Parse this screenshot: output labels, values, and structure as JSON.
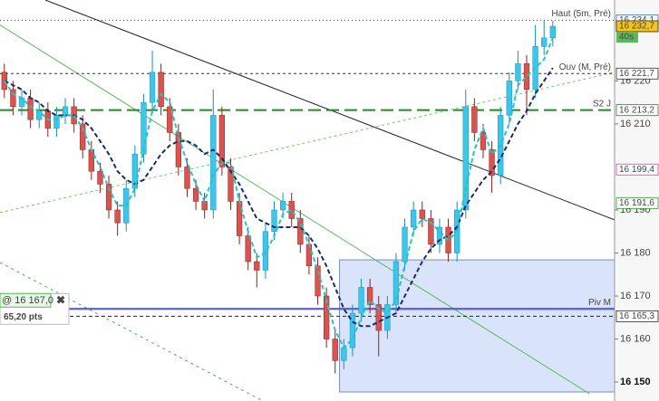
{
  "chart_data": {
    "type": "candlestick",
    "xlim": [
      -0.5,
      70.1
    ],
    "ylim": [
      16145.6,
      16238.8
    ],
    "grid": false,
    "yticks": [
      {
        "value": 16150,
        "label": "16 150"
      },
      {
        "value": 16160,
        "label": "16 160"
      },
      {
        "value": 16170,
        "label": "16 170"
      },
      {
        "value": 16180,
        "label": "16 180"
      },
      {
        "value": 16190,
        "label": "16 190"
      },
      {
        "value": 16210,
        "label": "16 210"
      },
      {
        "value": 16220,
        "label": "16 220"
      }
    ],
    "up_color": "#3cc6ec",
    "down_color": "#d9534f",
    "open": [
      16222,
      16218,
      16214,
      16216,
      16211,
      16213,
      16209,
      16212,
      16214,
      16210,
      16204,
      16199,
      16196,
      16190,
      16187,
      16195,
      16203,
      16215,
      16222,
      16214,
      16208,
      16200,
      16195,
      16192,
      16190,
      16212,
      16200,
      16192,
      16184,
      16178,
      16176,
      16185,
      16190,
      16192,
      16188,
      16182,
      16177,
      16170,
      16160,
      16155,
      16158,
      16166,
      16172,
      16168,
      16162,
      16168,
      16178,
      16186,
      16190,
      16188,
      16182,
      16186,
      16180,
      16190,
      16214,
      16208,
      16204,
      16198,
      16212,
      16220,
      16224,
      16218,
      16228,
      16230
    ],
    "high": [
      16224,
      16220,
      16218,
      16218,
      16215,
      16215,
      16214,
      16216,
      16216,
      16212,
      16206,
      16201,
      16198,
      16192,
      16197,
      16205,
      16217,
      16227,
      16224,
      16216,
      16210,
      16202,
      16197,
      16194,
      16218,
      16214,
      16202,
      16194,
      16186,
      16180,
      16187,
      16192,
      16194,
      16194,
      16190,
      16184,
      16179,
      16172,
      16162,
      16160,
      16168,
      16174,
      16174,
      16170,
      16170,
      16180,
      16188,
      16192,
      16192,
      16190,
      16188,
      16188,
      16192,
      16218,
      16216,
      16210,
      16206,
      16214,
      16222,
      16227,
      16226,
      16233,
      16234.1,
      16234
    ],
    "low": [
      16216,
      16212,
      16212,
      16209,
      16209,
      16207,
      16207,
      16210,
      16208,
      16202,
      16197,
      16194,
      16188,
      16184,
      16185,
      16193,
      16201,
      16213,
      16212,
      16206,
      16198,
      16193,
      16190,
      16188,
      16188,
      16198,
      16190,
      16182,
      16176,
      16172,
      16174,
      16183,
      16188,
      16186,
      16180,
      16175,
      16168,
      16158,
      16152,
      16153,
      16156,
      16164,
      16166,
      16156,
      16160,
      16166,
      16176,
      16184,
      16186,
      16180,
      16180,
      16178,
      16178,
      16188,
      16206,
      16202,
      16194,
      16196,
      16210,
      16218,
      16212,
      16216,
      16226,
      16228
    ],
    "close": [
      16218,
      16214,
      16216,
      16211,
      16213,
      16209,
      16212,
      16214,
      16210,
      16204,
      16199,
      16196,
      16190,
      16187,
      16195,
      16203,
      16215,
      16222,
      16214,
      16208,
      16200,
      16195,
      16192,
      16190,
      16212,
      16200,
      16192,
      16184,
      16178,
      16176,
      16185,
      16190,
      16192,
      16188,
      16182,
      16177,
      16170,
      16160,
      16155,
      16158,
      16166,
      16172,
      16168,
      16162,
      16168,
      16178,
      16186,
      16190,
      16188,
      16182,
      16186,
      16180,
      16190,
      16214,
      16208,
      16204,
      16198,
      16212,
      16220,
      16224,
      16218,
      16228,
      16230,
      16232.7
    ],
    "moving_averages": [
      {
        "color": "#1b2a6b",
        "values": [
          16220,
          16219,
          16218,
          16216,
          16215,
          16213,
          16212,
          16212,
          16212,
          16211,
          16209,
          16206,
          16203,
          16199,
          16197,
          16196,
          16197,
          16200,
          16203,
          16205,
          16206,
          16206,
          16205,
          16203,
          16204,
          16202,
          16199,
          16196,
          16192,
          16188,
          16187,
          16186,
          16186,
          16186,
          16186,
          16184,
          16181,
          16177,
          16172,
          16167,
          16164,
          16163,
          16163,
          16164,
          16165,
          16166,
          16170,
          16174,
          16178,
          16181,
          16183,
          16184,
          16186,
          16191,
          16194,
          16197,
          16199,
          16202,
          16206,
          16210,
          16213,
          16217,
          16220,
          16223
        ]
      },
      {
        "color": "#22c4c4",
        "values": [
          16220,
          16217,
          16216,
          16214,
          16213,
          16211,
          16211,
          16212,
          16212,
          16209,
          16204,
          16200,
          16195,
          16191,
          16191,
          16195,
          16204,
          16213,
          16217,
          16215,
          16207,
          16201,
          16196,
          16192,
          16198,
          16201,
          16201,
          16192,
          16185,
          16179,
          16180,
          16184,
          16189,
          16190,
          16187,
          16182,
          16176,
          16169,
          16162,
          16158,
          16160,
          16165,
          16169,
          16167,
          16166,
          16169,
          16177,
          16185,
          16188,
          16187,
          16185,
          16183,
          16185,
          16195,
          16204,
          16209,
          16203,
          16205,
          16210,
          16219,
          16221,
          16223,
          16225,
          16230
        ]
      }
    ],
    "trendlines": [
      {
        "color": "#222222",
        "dash": "",
        "x": [
          4.7,
          70.1
        ],
        "y": [
          16238.8,
          16187.7
        ]
      },
      {
        "color": "#5cb85c",
        "dash": "",
        "x": [
          -0.5,
          67.2
        ],
        "y": [
          16233,
          16147.3
        ]
      },
      {
        "color": "#4caf50",
        "dash": "3 4",
        "x": [
          -0.5,
          29.7
        ],
        "y": [
          16177.8,
          16145.6
        ]
      },
      {
        "color": "#66cc66",
        "dash": "3 3",
        "x": [
          -0.5,
          70.1
        ],
        "y": [
          16189.4,
          16222
        ]
      }
    ],
    "levels": [
      {
        "value": 16234.1,
        "color": "#333333",
        "dash": "1 3",
        "text": "Haut (5m, Pré)"
      },
      {
        "value": 16221.7,
        "color": "#333333",
        "dash": "3 3",
        "text": "Ouv (M, Pré)"
      },
      {
        "value": 16213.2,
        "color": "#1e8c1e",
        "dash": "14 6",
        "text": "S2 J"
      },
      {
        "value": 16167,
        "color": "#1a1ab8",
        "dash": "",
        "text": "Piv M"
      },
      {
        "value": 16165.3,
        "color": "#222222",
        "dash": "4 3"
      }
    ],
    "price_tags": [
      {
        "value": 16234.1,
        "label": "16 234,1",
        "color": "#2a6fb0",
        "background": "#ffffff"
      },
      {
        "value": 16232.7,
        "label": "16 232,7",
        "color": "#222222",
        "background": "#f5c518"
      },
      {
        "value": 16221.7,
        "label": "16 221,7",
        "color": "#333333",
        "background": "#ffffff"
      },
      {
        "value": 16213.2,
        "label": "16 213,2",
        "color": "#1e8c1e",
        "background": "#ffffff"
      },
      {
        "value": 16199.4,
        "label": "16 199,4",
        "color": "#e040a0",
        "background": "#ffffff"
      },
      {
        "value": 16191.6,
        "label": "16 191,6",
        "color": "#2e9e2e",
        "background": "#ffffff"
      },
      {
        "value": 16165.3,
        "label": "16 165,3",
        "color": "#222222",
        "background": "#ffffff"
      }
    ],
    "timer": "40s",
    "box": {
      "x": [
        38.5,
        70.1
      ],
      "y": [
        16178.4,
        16147.7
      ],
      "color": "#cfdcf7"
    },
    "order": {
      "value": 16167,
      "label": "@ 16 167,0",
      "distance": "65,20 pts"
    }
  }
}
